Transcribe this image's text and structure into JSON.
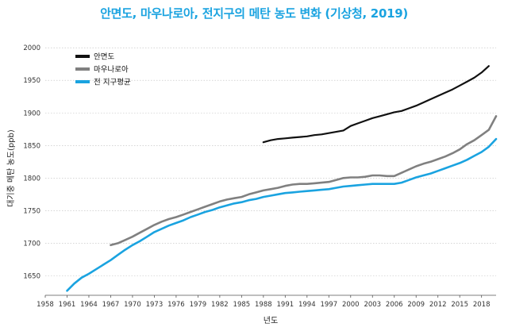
{
  "chart_data": {
    "type": "line",
    "title": "안면도, 마우나로아, 전지구의 메탄 농도 변화 (기상청, 2019)",
    "xlabel": "년도",
    "ylabel": "대기중 메탄 농도(ppb)",
    "xlim": [
      1958,
      2020
    ],
    "ylim": [
      1620,
      2010
    ],
    "xticks": [
      "1958",
      "1961",
      "1964",
      "1967",
      "1970",
      "1973",
      "1976",
      "1979",
      "1982",
      "1985",
      "1988",
      "1991",
      "1994",
      "1997",
      "2000",
      "2003",
      "2006",
      "2009",
      "2012",
      "2015",
      "2018"
    ],
    "yticks": [
      1650,
      1700,
      1750,
      1800,
      1850,
      1900,
      1950,
      2000
    ],
    "legend": "top-left",
    "series": [
      {
        "name": "안면도",
        "color": "#111111",
        "x": [
          1988,
          1989,
          1990,
          1991,
          1992,
          1993,
          1994,
          1995,
          1996,
          1997,
          1998,
          1999,
          2000,
          2001,
          2002,
          2003,
          2004,
          2005,
          2006,
          2007,
          2008,
          2009,
          2010,
          2011,
          2012,
          2013,
          2014,
          2015,
          2016,
          2017,
          2018,
          2019
        ],
        "y": [
          1855,
          1858,
          1860,
          1861,
          1862,
          1863,
          1864,
          1866,
          1867,
          1869,
          1871,
          1873,
          1880,
          1884,
          1888,
          1892,
          1895,
          1898,
          1901,
          1903,
          1907,
          1911,
          1916,
          1921,
          1926,
          1931,
          1936,
          1942,
          1948,
          1954,
          1962,
          1972
        ]
      },
      {
        "name": "마우나로아",
        "color": "#808080",
        "x": [
          1967,
          1968,
          1969,
          1970,
          1971,
          1972,
          1973,
          1974,
          1975,
          1976,
          1977,
          1978,
          1979,
          1980,
          1981,
          1982,
          1983,
          1984,
          1985,
          1986,
          1987,
          1988,
          1989,
          1990,
          1991,
          1992,
          1993,
          1994,
          1995,
          1996,
          1997,
          1998,
          1999,
          2000,
          2001,
          2002,
          2003,
          2004,
          2005,
          2006,
          2007,
          2008,
          2009,
          2010,
          2011,
          2012,
          2013,
          2014,
          2015,
          2016,
          2017,
          2018,
          2019,
          2020
        ],
        "y": [
          1697,
          1700,
          1705,
          1710,
          1716,
          1722,
          1728,
          1733,
          1737,
          1740,
          1744,
          1748,
          1752,
          1756,
          1760,
          1764,
          1767,
          1769,
          1771,
          1775,
          1778,
          1781,
          1783,
          1785,
          1788,
          1790,
          1791,
          1791,
          1792,
          1793,
          1794,
          1797,
          1800,
          1801,
          1801,
          1802,
          1804,
          1804,
          1803,
          1803,
          1808,
          1813,
          1818,
          1822,
          1825,
          1829,
          1833,
          1838,
          1844,
          1852,
          1858,
          1866,
          1874,
          1895
        ]
      },
      {
        "name": "전 지구평균",
        "color": "#1aa3e0",
        "x": [
          1961,
          1962,
          1963,
          1964,
          1965,
          1966,
          1967,
          1968,
          1969,
          1970,
          1971,
          1972,
          1973,
          1974,
          1975,
          1976,
          1977,
          1978,
          1979,
          1980,
          1981,
          1982,
          1983,
          1984,
          1985,
          1986,
          1987,
          1988,
          1989,
          1990,
          1991,
          1992,
          1993,
          1994,
          1995,
          1996,
          1997,
          1998,
          1999,
          2000,
          2001,
          2002,
          2003,
          2004,
          2005,
          2006,
          2007,
          2008,
          2009,
          2010,
          2011,
          2012,
          2013,
          2014,
          2015,
          2016,
          2017,
          2018,
          2019,
          2020
        ],
        "y": [
          1627,
          1638,
          1647,
          1653,
          1660,
          1667,
          1674,
          1682,
          1690,
          1697,
          1703,
          1710,
          1717,
          1722,
          1727,
          1731,
          1735,
          1740,
          1744,
          1748,
          1751,
          1755,
          1758,
          1761,
          1763,
          1766,
          1768,
          1771,
          1773,
          1775,
          1777,
          1778,
          1779,
          1780,
          1781,
          1782,
          1783,
          1785,
          1787,
          1788,
          1789,
          1790,
          1791,
          1791,
          1791,
          1791,
          1793,
          1797,
          1801,
          1804,
          1807,
          1811,
          1815,
          1819,
          1823,
          1828,
          1834,
          1840,
          1848,
          1860
        ]
      }
    ]
  }
}
